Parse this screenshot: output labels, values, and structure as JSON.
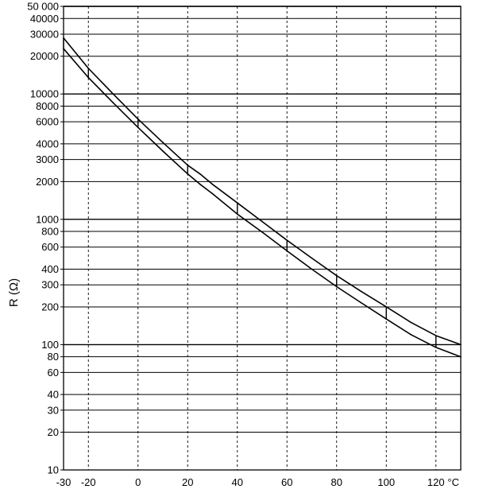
{
  "chart_data": {
    "type": "line",
    "title": "",
    "xlabel": "°C",
    "ylabel": "R (Ω)",
    "xlim": [
      -30,
      130
    ],
    "ylim": [
      10,
      50000
    ],
    "y_scale": "log",
    "grid": true,
    "x_tick_labels": [
      "-30",
      "-20",
      "0",
      "20",
      "40",
      "60",
      "80",
      "100",
      "120"
    ],
    "y_tick_labels": [
      "10",
      "20",
      "30",
      "40",
      "60",
      "80",
      "100",
      "200",
      "300",
      "400",
      "600",
      "800",
      "1000",
      "2000",
      "3000",
      "4000",
      "6000",
      "8000",
      "10000",
      "20000",
      "30000",
      "40000",
      "50 000"
    ],
    "series": [
      {
        "x": [
          -30,
          -20,
          -10,
          0,
          10,
          20,
          25,
          30,
          40,
          50,
          60,
          70,
          80,
          90,
          100,
          110,
          120,
          130
        ],
        "y": [
          28000,
          16000,
          10000,
          6300,
          4100,
          2700,
          2300,
          1900,
          1350,
          960,
          680,
          490,
          355,
          265,
          200,
          150,
          118,
          100
        ]
      },
      {
        "x": [
          -30,
          -20,
          -10,
          0,
          10,
          20,
          25,
          30,
          40,
          50,
          60,
          70,
          80,
          90,
          100,
          110,
          120,
          130
        ],
        "y": [
          23000,
          13500,
          8500,
          5400,
          3500,
          2300,
          1900,
          1600,
          1100,
          790,
          560,
          400,
          290,
          215,
          160,
          120,
          95,
          80
        ]
      }
    ]
  }
}
